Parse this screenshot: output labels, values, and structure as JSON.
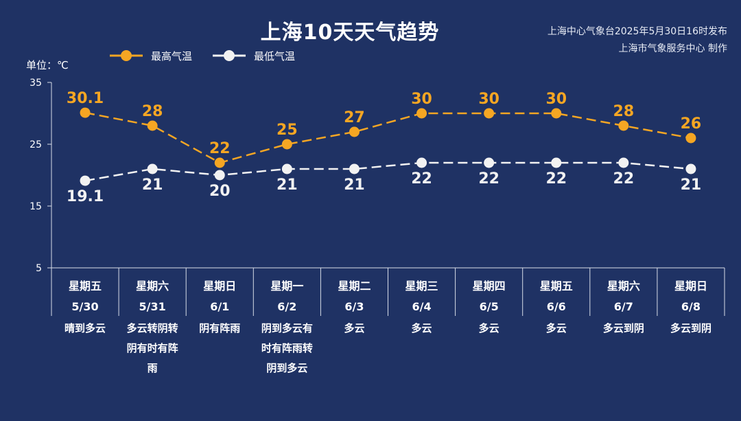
{
  "title": "上海10天天气趋势",
  "issuer": [
    "上海中心气象台2025年5月30日16时发布",
    "上海市气象服务中心 制作"
  ],
  "unit_label": "单位：℃",
  "colors": {
    "background": "#1f3264",
    "high": "#f5a623",
    "low": "#f2f2f2",
    "axis": "#d8dde8"
  },
  "chart_data": {
    "type": "line",
    "title": "上海10天天气趋势",
    "ylim": [
      5,
      35
    ],
    "yticks": [
      5,
      15,
      25,
      35
    ],
    "categories": [
      {
        "weekday": "星期五",
        "date": "5/30",
        "weather": [
          "晴到多云"
        ]
      },
      {
        "weekday": "星期六",
        "date": "5/31",
        "weather": [
          "多云转阴转",
          "阴有时有阵",
          "雨"
        ]
      },
      {
        "weekday": "星期日",
        "date": "6/1",
        "weather": [
          "阴有阵雨"
        ]
      },
      {
        "weekday": "星期一",
        "date": "6/2",
        "weather": [
          "阴到多云有",
          "时有阵雨转",
          "阴到多云"
        ]
      },
      {
        "weekday": "星期二",
        "date": "6/3",
        "weather": [
          "多云"
        ]
      },
      {
        "weekday": "星期三",
        "date": "6/4",
        "weather": [
          "多云"
        ]
      },
      {
        "weekday": "星期四",
        "date": "6/5",
        "weather": [
          "多云"
        ]
      },
      {
        "weekday": "星期五",
        "date": "6/6",
        "weather": [
          "多云"
        ]
      },
      {
        "weekday": "星期六",
        "date": "6/7",
        "weather": [
          "多云到阴"
        ]
      },
      {
        "weekday": "星期日",
        "date": "6/8",
        "weather": [
          "多云到阴"
        ]
      }
    ],
    "series": [
      {
        "name": "最高气温",
        "values": [
          30.1,
          28,
          22,
          25,
          27,
          30,
          30,
          30,
          28,
          26
        ],
        "labels": [
          "30.1",
          "28",
          "22",
          "25",
          "27",
          "30",
          "30",
          "30",
          "28",
          "26"
        ],
        "color": "#f5a623",
        "label_position": "above"
      },
      {
        "name": "最低气温",
        "values": [
          19.1,
          21,
          20,
          21,
          21,
          22,
          22,
          22,
          22,
          21
        ],
        "labels": [
          "19.1",
          "21",
          "20",
          "21",
          "21",
          "22",
          "22",
          "22",
          "22",
          "21"
        ],
        "color": "#f2f2f2",
        "label_position": "below"
      }
    ],
    "grid": false,
    "legend": "top-left"
  }
}
